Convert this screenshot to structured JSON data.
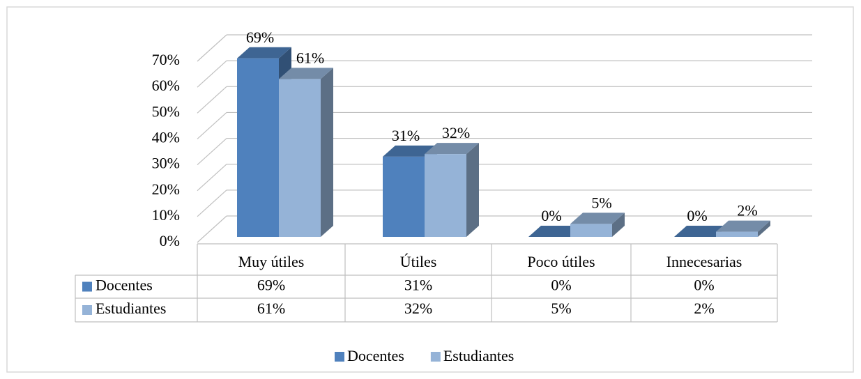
{
  "chart_data": {
    "type": "bar3d",
    "categories": [
      "Muy útiles",
      "Útiles",
      "Poco útiles",
      "Innecesarias"
    ],
    "series": [
      {
        "name": "Docentes",
        "color": "#4f81bd",
        "values": [
          69,
          31,
          0,
          0
        ],
        "value_labels": [
          "69%",
          "31%",
          "0%",
          "0%"
        ]
      },
      {
        "name": "Estudiantes",
        "color": "#95b3d7",
        "values": [
          61,
          32,
          5,
          2
        ],
        "value_labels": [
          "61%",
          "32%",
          "5%",
          "2%"
        ]
      }
    ],
    "ylim": [
      0,
      70
    ],
    "yticks": [
      {
        "value": 0,
        "label": "0%"
      },
      {
        "value": 10,
        "label": "10%"
      },
      {
        "value": 20,
        "label": "20%"
      },
      {
        "value": 30,
        "label": "30%"
      },
      {
        "value": 40,
        "label": "40%"
      },
      {
        "value": 50,
        "label": "50%"
      },
      {
        "value": 60,
        "label": "60%"
      },
      {
        "value": 70,
        "label": "70%"
      }
    ],
    "grid": true,
    "legend": "bottom",
    "data_table": true
  }
}
